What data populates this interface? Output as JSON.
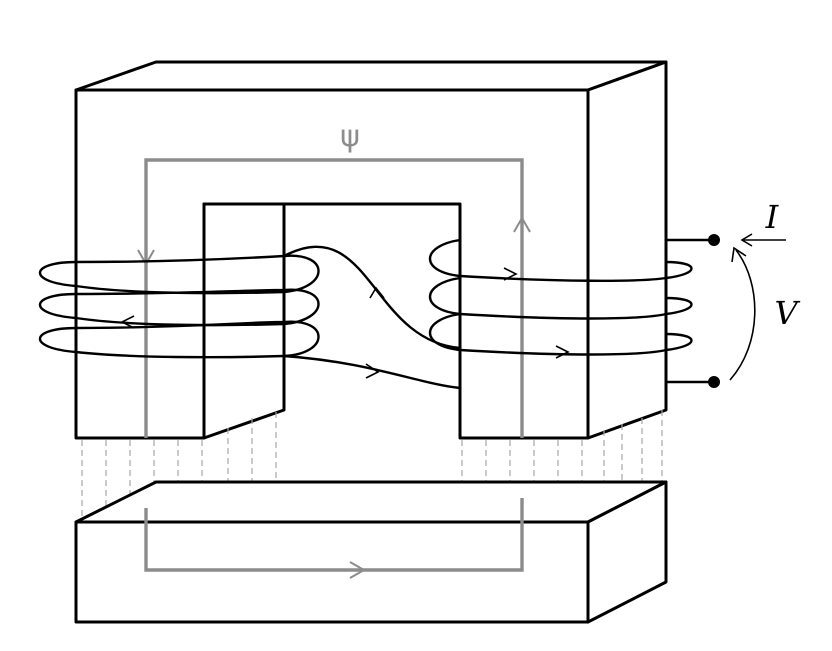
{
  "labels": {
    "flux_symbol": "ψ",
    "current_symbol": "I",
    "voltage_symbol": "V"
  },
  "colors": {
    "core_outline": "#000000",
    "winding": "#000000",
    "flux_path": "#8c8c8c",
    "leakage_lines": "#a8a8a8"
  }
}
